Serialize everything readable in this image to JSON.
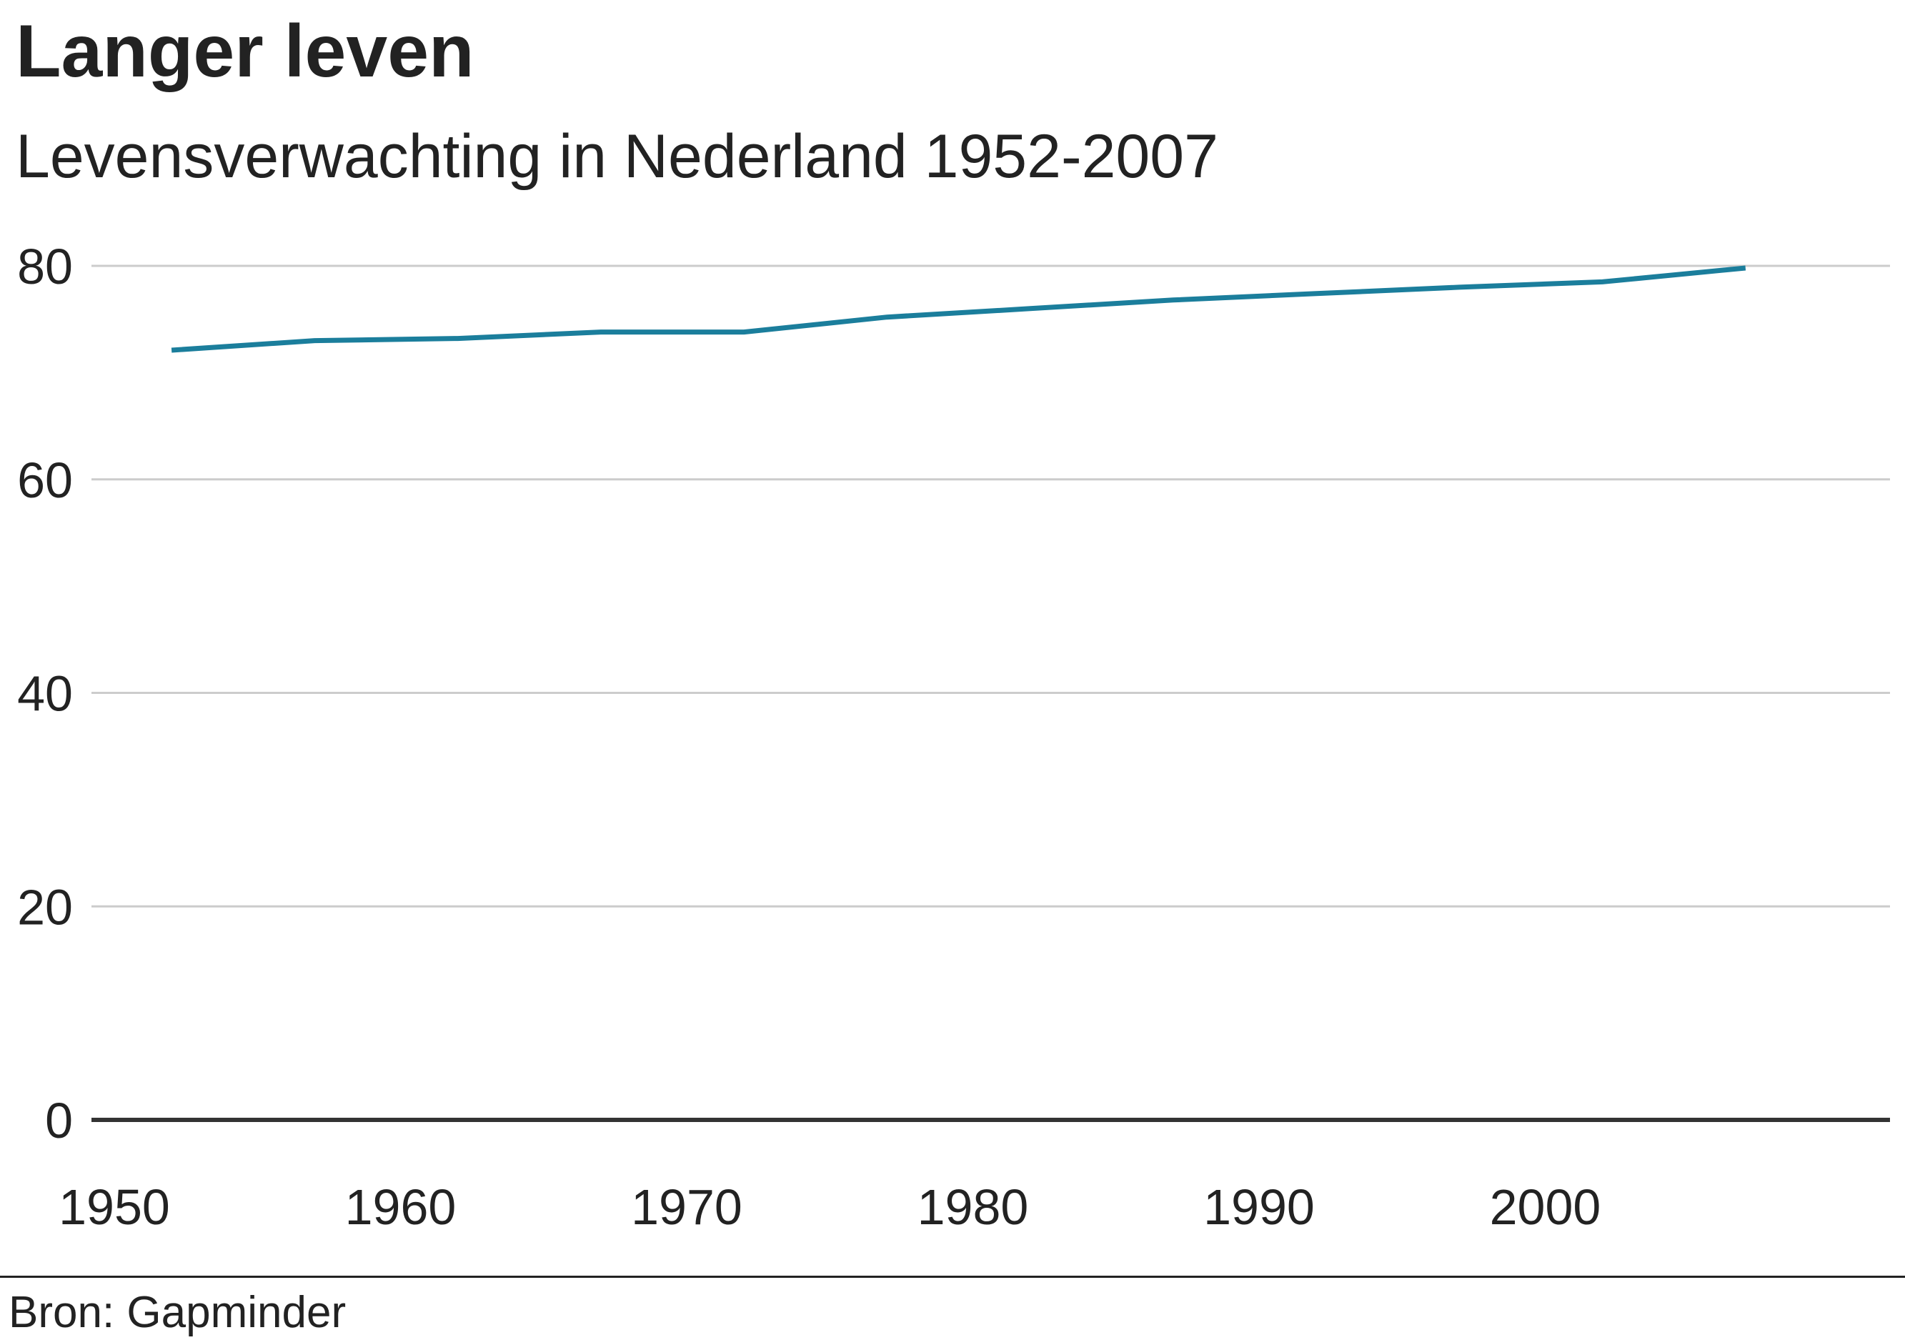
{
  "header": {
    "title": "Langer leven",
    "subtitle": "Levensverwachting in Nederland 1952-2007"
  },
  "footer": {
    "source": "Bron: Gapminder"
  },
  "colors": {
    "line": "#1b7e9c",
    "grid": "#cccccc",
    "baseline": "#333333",
    "text": "#222222"
  },
  "chart_data": {
    "type": "line",
    "x": [
      1952,
      1957,
      1962,
      1967,
      1972,
      1977,
      1982,
      1987,
      1992,
      1997,
      2002,
      2007
    ],
    "series": [
      {
        "values": [
          72.1,
          73.0,
          73.2,
          73.8,
          73.8,
          75.2,
          76.0,
          76.8,
          77.4,
          78.0,
          78.5,
          79.8
        ]
      }
    ],
    "xlim": [
      1950,
      2010
    ],
    "ylim": [
      0,
      80
    ],
    "x_ticks": [
      "1950",
      "1960",
      "1970",
      "1980",
      "1990",
      "2000"
    ],
    "y_ticks": [
      "0",
      "20",
      "40",
      "60",
      "80"
    ],
    "grid": "horizontal",
    "legend": "none"
  }
}
